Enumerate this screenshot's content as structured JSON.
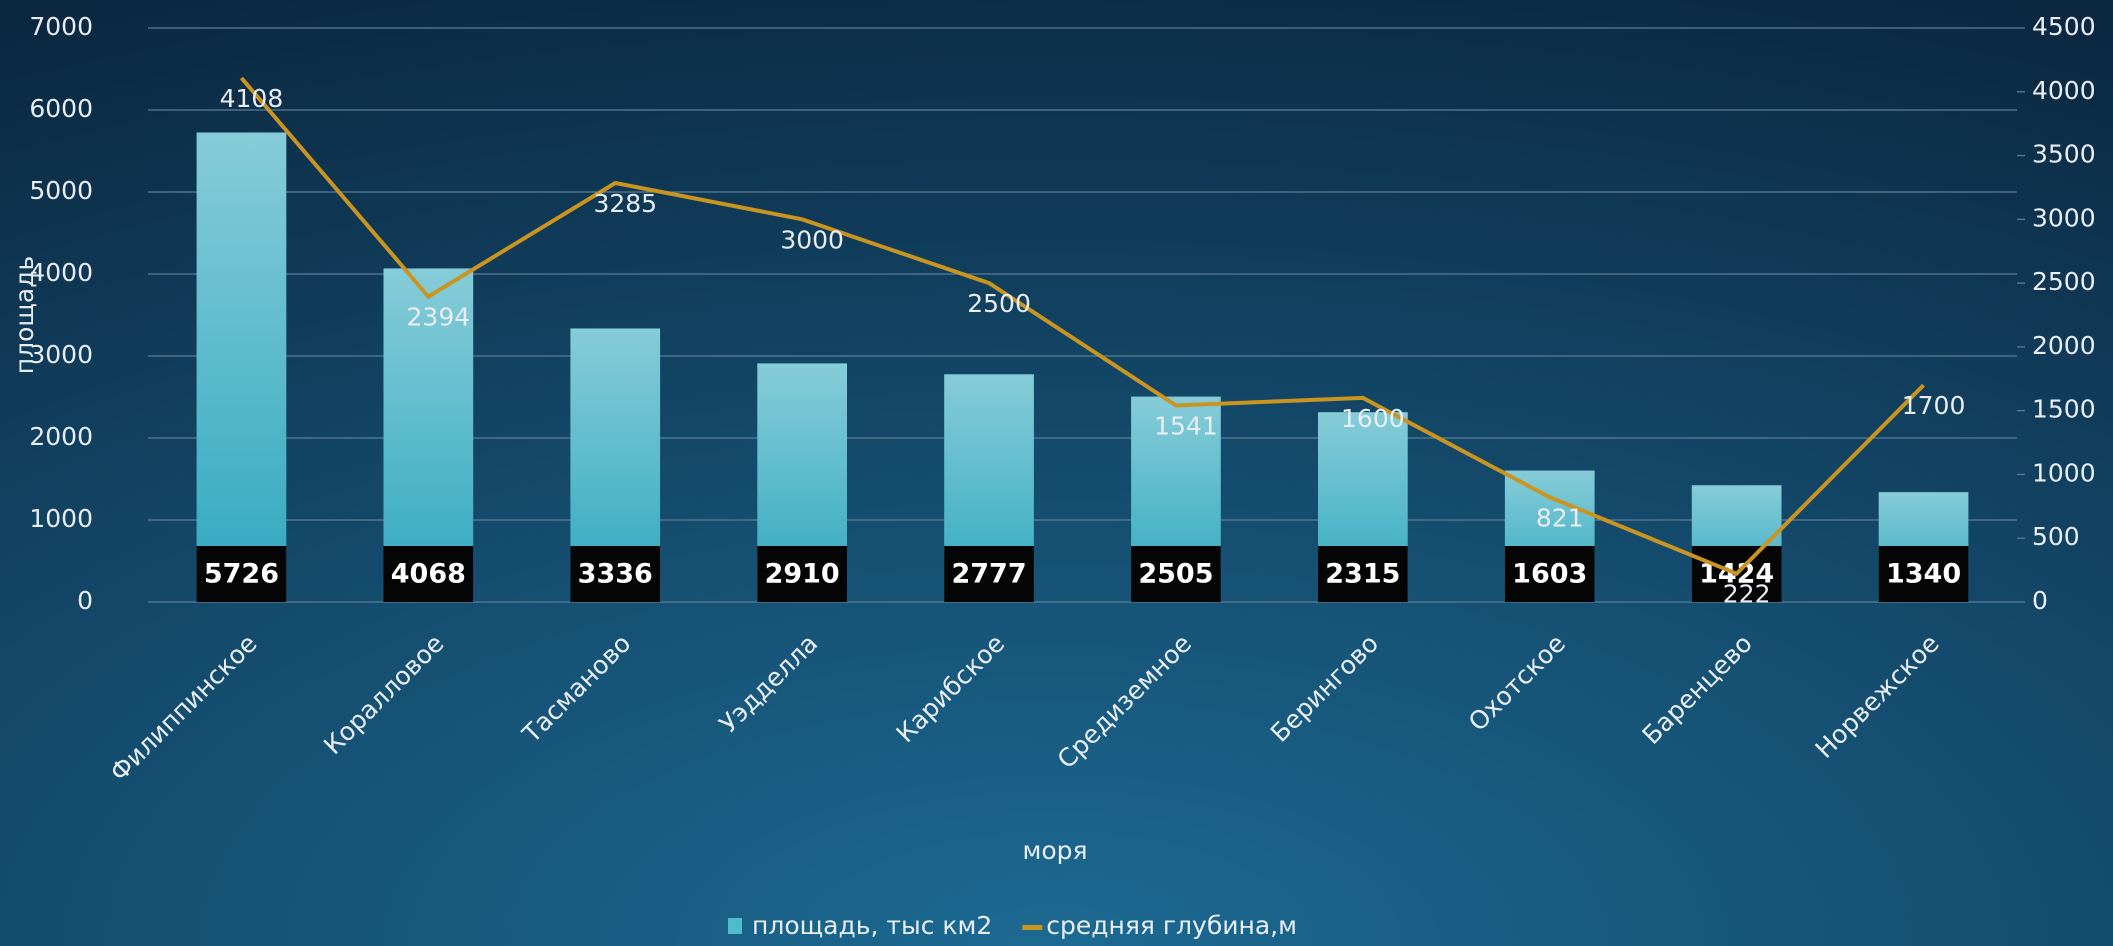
{
  "chart_data": {
    "type": "bar",
    "x_label": "моря",
    "y_label": "площадь",
    "categories": [
      "Филиппинское",
      "Коралловое",
      "Тасманово",
      "Уэдделла",
      "Карибское",
      "Средиземное",
      "Берингово",
      "Охотское",
      "Баренцево",
      "Норвежское"
    ],
    "series": [
      {
        "name": "площадь, тыс км2",
        "color": "#4fbccd",
        "values": [
          5726,
          4068,
          3336,
          2910,
          2777,
          2505,
          2315,
          1603,
          1424,
          1340
        ]
      },
      {
        "name": "средняя глубина,м",
        "color": "#c99520",
        "axis": "y2",
        "values": [
          4108,
          2394,
          3285,
          3000,
          2500,
          1541,
          1600,
          821,
          222,
          1700
        ]
      }
    ],
    "ylim": [
      0,
      7000
    ],
    "yticks": [
      0,
      1000,
      2000,
      3000,
      4000,
      5000,
      6000,
      7000
    ],
    "y2lim": [
      0,
      4500
    ],
    "y2ticks": [
      0,
      500,
      1000,
      1500,
      2000,
      2500,
      3000,
      3500,
      4000,
      4500
    ],
    "grid": true
  }
}
